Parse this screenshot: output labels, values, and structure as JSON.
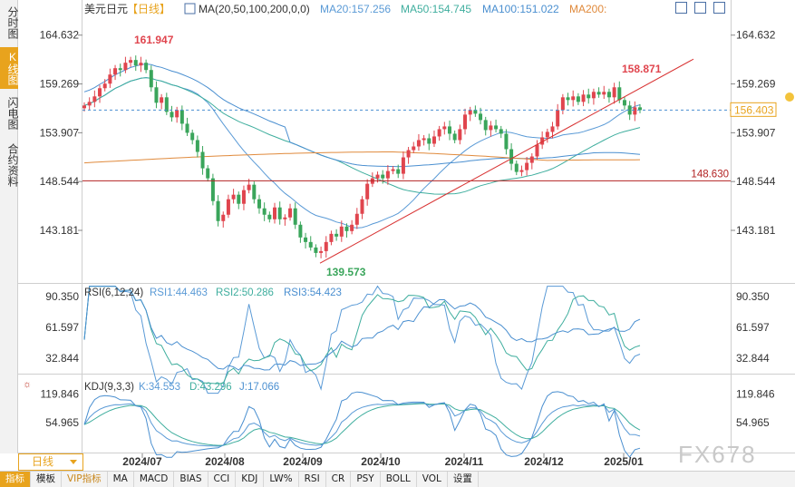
{
  "left_tabs": [
    {
      "label": "分时图",
      "active": false
    },
    {
      "label": "K线图",
      "active": true
    },
    {
      "label": "闪电图",
      "active": false
    },
    {
      "label": "合约资料",
      "active": false
    }
  ],
  "header": {
    "symbol": "美元日元",
    "period_tag": "【日线】",
    "ma_label": "MA(20,50,100,200,0,0)",
    "ma20": "MA20:157.256",
    "ma50": "MA50:154.745",
    "ma100": "MA100:151.022",
    "ma200": "MA200:"
  },
  "rsi_header": {
    "title": "RSI(6,12,24)",
    "rsi1": "RSI1:44.463",
    "rsi2": "RSI2:50.286",
    "rsi3": "RSI3:54.423"
  },
  "kdj_header": {
    "title": "KDJ(9,3,3)",
    "k": "K:34.553",
    "d": "D:43.296",
    "j": "J:17.066"
  },
  "period_button": "日线",
  "toolbar": [
    "指标",
    "模板",
    "VIP指标",
    "MA",
    "MACD",
    "BIAS",
    "CCI",
    "KDJ",
    "LW%",
    "RSI",
    "CR",
    "PSY",
    "BOLL",
    "VOL",
    "设置"
  ],
  "watermark": "FX678",
  "colors": {
    "up": "#e0454e",
    "down": "#3aa55b",
    "ma20": "#5a9ad6",
    "ma50": "#3fae9e",
    "ma100": "#4a8fd0",
    "ma200": "#e08a3c",
    "trendline": "#d83232",
    "support": "#b22222"
  },
  "chart_data": [
    {
      "type": "candlestick",
      "symbol": "USD/JPY",
      "timeframe": "daily",
      "x_ticks": [
        "2024/07",
        "2024/08",
        "2024/09",
        "2024/10",
        "2024/11",
        "2024/12",
        "2025/01"
      ],
      "y_ticks": [
        164.632,
        159.269,
        153.907,
        148.544,
        143.181
      ],
      "ylim": [
        138.0,
        166.5
      ],
      "annotations": {
        "high_label": "161.947",
        "low_label": "139.573",
        "recent_high_label": "158.871",
        "last_price": "156.403",
        "support_level": "148.630"
      },
      "ma_values": {
        "MA20": 157.256,
        "MA50": 154.745,
        "MA100": 151.022
      },
      "closes": [
        156.9,
        157.3,
        157.9,
        158.8,
        159.3,
        160.3,
        161.0,
        160.8,
        161.6,
        161.9,
        161.3,
        161.6,
        160.8,
        158.9,
        157.2,
        157.8,
        156.2,
        155.6,
        156.4,
        154.9,
        153.9,
        153.1,
        151.8,
        150.0,
        148.9,
        146.4,
        144.2,
        144.9,
        146.6,
        147.1,
        146.1,
        147.6,
        148.2,
        146.6,
        145.6,
        144.9,
        144.4,
        145.7,
        144.4,
        144.6,
        145.6,
        143.8,
        142.4,
        141.9,
        141.3,
        140.7,
        140.9,
        141.9,
        142.8,
        142.5,
        143.6,
        143.1,
        143.8,
        145.0,
        146.6,
        148.3,
        148.9,
        149.3,
        148.9,
        149.7,
        149.9,
        149.4,
        151.2,
        152.0,
        152.4,
        153.1,
        153.3,
        152.7,
        153.5,
        154.3,
        154.6,
        153.8,
        153.1,
        154.3,
        155.9,
        156.4,
        156.0,
        155.3,
        154.2,
        154.7,
        154.3,
        153.8,
        152.1,
        150.5,
        149.6,
        149.8,
        150.6,
        151.3,
        152.6,
        153.4,
        154.0,
        154.6,
        156.4,
        157.8,
        157.5,
        157.9,
        157.3,
        158.1,
        157.7,
        158.4,
        158.1,
        158.4,
        157.8,
        158.9,
        157.5,
        156.9,
        155.9,
        156.7,
        156.4
      ],
      "rsi": {
        "ticks": [
          90.35,
          61.597,
          32.844
        ],
        "ylim": [
          20,
          98
        ],
        "RSI1": 44.463,
        "RSI2": 50.286,
        "RSI3": 54.423
      },
      "kdj": {
        "ticks": [
          119.846,
          54.965
        ],
        "ylim": [
          -10,
          140
        ],
        "K": 34.553,
        "D": 43.296,
        "J": 17.066
      }
    }
  ]
}
